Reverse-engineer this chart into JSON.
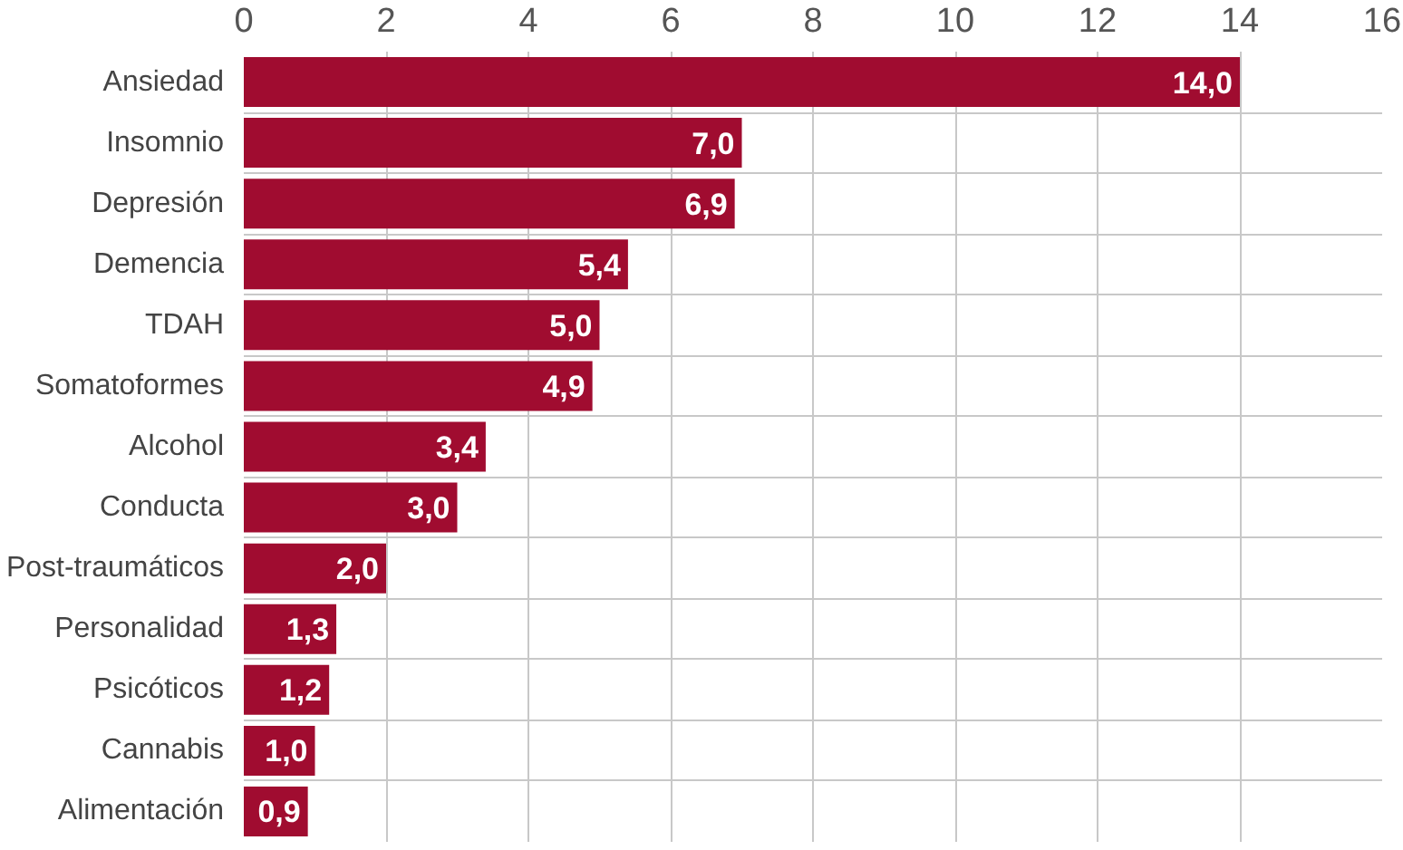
{
  "chart_data": {
    "type": "bar",
    "orientation": "horizontal",
    "categories": [
      "Ansiedad",
      "Insomnio",
      "Depresión",
      "Demencia",
      "TDAH",
      "Somatoformes",
      "Alcohol",
      "Conducta",
      "Post-traumáticos",
      "Personalidad",
      "Psicóticos",
      "Cannabis",
      "Alimentación"
    ],
    "values": [
      14.0,
      7.0,
      6.9,
      5.4,
      5.0,
      4.9,
      3.4,
      3.0,
      2.0,
      1.3,
      1.2,
      1.0,
      0.9
    ],
    "value_labels": [
      "14,0",
      "7,0",
      "6,9",
      "5,4",
      "5,0",
      "4,9",
      "3,4",
      "3,0",
      "2,0",
      "1,3",
      "1,2",
      "1,0",
      "0,9"
    ],
    "color": "#a00c30",
    "xlim": [
      0,
      16
    ],
    "xticks": [
      0,
      2,
      4,
      6,
      8,
      10,
      12,
      14,
      16
    ],
    "grid": true
  }
}
